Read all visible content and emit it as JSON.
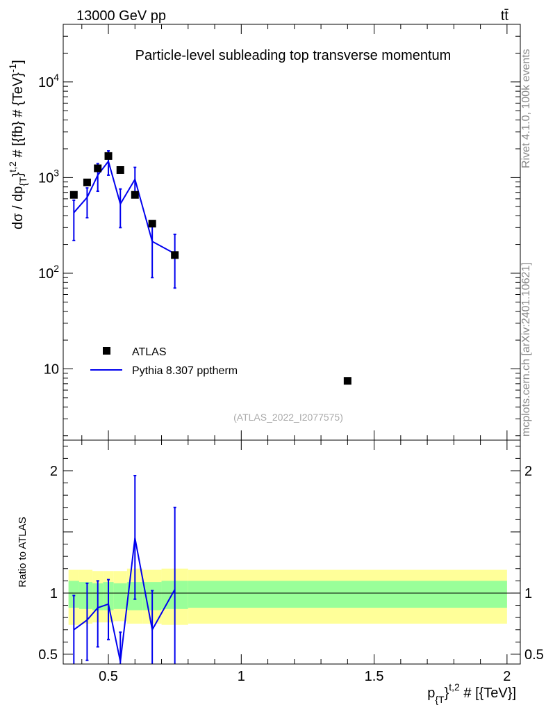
{
  "header": {
    "beam": "13000 GeV pp",
    "process": "tt̄"
  },
  "side_labels": {
    "rivet": "Rivet 4.1.0,  100k events",
    "mcplots": "mcplots.cern.ch [arXiv:2401.10621]"
  },
  "colors": {
    "mc": "#0000ee",
    "data": "#000000",
    "band_inner": "#99ff99",
    "band_outer": "#ffff99"
  },
  "chart_data": [
    {
      "type": "scatter",
      "title": "Particle-level subleading top transverse momentum",
      "analysis_tag": "(ATLAS_2022_I2077575)",
      "ylabel": "dσ / dp_{T}^{t,2} # [{fb} # {TeV}^-1]",
      "yscale": "log",
      "ylim": [
        1.8,
        40000
      ],
      "xlim": [
        0.33,
        2.05
      ],
      "y_ticks": [
        {
          "value": 10,
          "label": "10"
        },
        {
          "value": 100,
          "label": "10",
          "exp": "2"
        },
        {
          "value": 1000,
          "label": "10",
          "exp": "3"
        },
        {
          "value": 10000,
          "label": "10",
          "exp": "4"
        }
      ],
      "legend": {
        "data_label": "ATLAS",
        "mc_label": "Pythia 8.307 pptherm"
      },
      "series": [
        {
          "name": "ATLAS",
          "x": [
            0.37,
            0.42,
            0.46,
            0.5,
            0.545,
            0.6,
            0.665,
            0.75,
            1.4
          ],
          "y": [
            660,
            890,
            1250,
            1680,
            1200,
            660,
            330,
            155,
            7.5
          ]
        },
        {
          "name": "Pythia 8.307 pptherm",
          "x": [
            0.37,
            0.42,
            0.46,
            0.5,
            0.545,
            0.6,
            0.665,
            0.75
          ],
          "y": [
            430,
            620,
            1060,
            1480,
            530,
            960,
            215,
            160
          ],
          "ylow": [
            220,
            380,
            720,
            1060,
            300,
            640,
            90,
            70
          ],
          "yhigh": [
            580,
            780,
            1400,
            1900,
            760,
            1280,
            310,
            255
          ]
        }
      ]
    },
    {
      "type": "line",
      "ylabel": "Ratio to ATLAS",
      "xlabel": "p_{T}^{t,2} # [{TeV}]",
      "ylim": [
        0.42,
        2.25
      ],
      "xlim": [
        0.33,
        2.05
      ],
      "x_ticks": [
        {
          "value": 0.5,
          "label": "0.5"
        },
        {
          "value": 1.0,
          "label": "1"
        },
        {
          "value": 1.5,
          "label": "1.5"
        },
        {
          "value": 2.0,
          "label": "2"
        }
      ],
      "y_ticks": [
        {
          "value": 0.5,
          "label": "0.5"
        },
        {
          "value": 1.0,
          "label": "1"
        },
        {
          "value": 2.0,
          "label": "2"
        }
      ],
      "band_edges": [
        0.35,
        0.39,
        0.44,
        0.48,
        0.52,
        0.57,
        0.63,
        0.7,
        0.8,
        2.0
      ],
      "band_inner_low": [
        0.88,
        0.87,
        0.86,
        0.86,
        0.87,
        0.86,
        0.86,
        0.87,
        0.88
      ],
      "band_inner_high": [
        1.1,
        1.09,
        1.08,
        1.09,
        1.08,
        1.09,
        1.09,
        1.1,
        1.1
      ],
      "band_outer_low": [
        0.74,
        0.75,
        0.76,
        0.76,
        0.77,
        0.75,
        0.75,
        0.74,
        0.75
      ],
      "band_outer_high": [
        1.19,
        1.19,
        1.18,
        1.18,
        1.18,
        1.2,
        1.19,
        1.2,
        1.19
      ],
      "series": [
        {
          "name": "Pythia 8.307 pptherm / ATLAS",
          "x": [
            0.37,
            0.42,
            0.46,
            0.5,
            0.545,
            0.6,
            0.665,
            0.75
          ],
          "y": [
            0.7,
            0.78,
            0.88,
            0.91,
            0.44,
            1.45,
            0.7,
            1.03
          ],
          "ylow": [
            0.35,
            0.45,
            0.56,
            0.62,
            0.25,
            0.95,
            0.25,
            0.41
          ],
          "yhigh": [
            0.98,
            1.08,
            1.1,
            1.11,
            0.68,
            1.96,
            1.02,
            1.7
          ]
        }
      ]
    }
  ]
}
